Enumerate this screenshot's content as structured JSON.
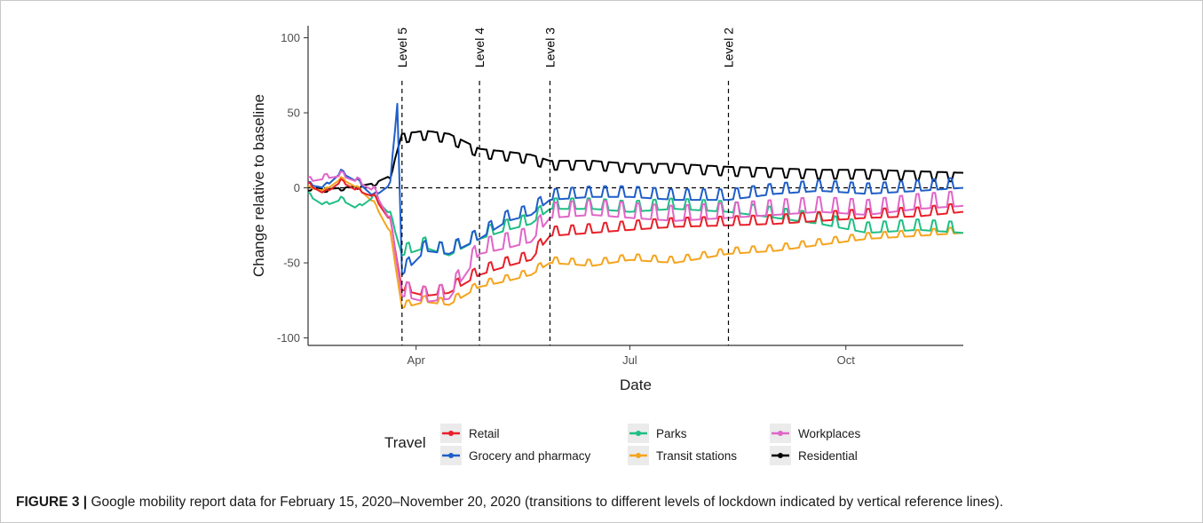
{
  "caption": {
    "label": "FIGURE 3 |",
    "text": " Google mobility report data for February 15, 2020–November 20, 2020 (transitions to different levels of lockdown indicated by vertical reference lines)."
  },
  "chart_data": {
    "type": "line",
    "xlabel": "Date",
    "ylabel": "Change relative to baseline",
    "xlim": [
      "2020-02-15",
      "2020-11-20"
    ],
    "ylim": [
      -105,
      108
    ],
    "x_ticks": [
      {
        "date": "2020-04-01",
        "label": "Apr"
      },
      {
        "date": "2020-07-01",
        "label": "Jul"
      },
      {
        "date": "2020-10-01",
        "label": "Oct"
      }
    ],
    "y_ticks": [
      -100,
      -50,
      0,
      50,
      100
    ],
    "grid": false,
    "reference_lines": [
      {
        "date": "2020-03-26",
        "label": "Level 5"
      },
      {
        "date": "2020-04-28",
        "label": "Level 4"
      },
      {
        "date": "2020-05-28",
        "label": "Level 3"
      },
      {
        "date": "2020-08-12",
        "label": "Level 2"
      }
    ],
    "horizontal_reference": 0,
    "legend": {
      "title": "Travel",
      "position": "bottom",
      "entries": [
        "Retail",
        "Grocery and pharmacy",
        "Parks",
        "Transit stations",
        "Workplaces",
        "Residential"
      ]
    },
    "series": [
      {
        "name": "Retail",
        "color": "#e8202a",
        "points": [
          [
            "2020-02-15",
            2
          ],
          [
            "2020-02-22",
            -4
          ],
          [
            "2020-02-29",
            4
          ],
          [
            "2020-03-07",
            -2
          ],
          [
            "2020-03-14",
            -6
          ],
          [
            "2020-03-21",
            -22
          ],
          [
            "2020-03-26",
            -68
          ],
          [
            "2020-04-05",
            -72
          ],
          [
            "2020-04-15",
            -70
          ],
          [
            "2020-04-28",
            -58
          ],
          [
            "2020-05-10",
            -52
          ],
          [
            "2020-05-20",
            -48
          ],
          [
            "2020-05-28",
            -32
          ],
          [
            "2020-06-15",
            -30
          ],
          [
            "2020-07-01",
            -28
          ],
          [
            "2020-07-20",
            -26
          ],
          [
            "2020-08-12",
            -25
          ],
          [
            "2020-09-01",
            -24
          ],
          [
            "2020-09-20",
            -22
          ],
          [
            "2020-10-10",
            -20
          ],
          [
            "2020-11-01",
            -19
          ],
          [
            "2020-11-20",
            -16
          ]
        ]
      },
      {
        "name": "Grocery and pharmacy",
        "color": "#1f5ec8",
        "points": [
          [
            "2020-02-15",
            2
          ],
          [
            "2020-02-22",
            0
          ],
          [
            "2020-02-29",
            10
          ],
          [
            "2020-03-07",
            4
          ],
          [
            "2020-03-14",
            -6
          ],
          [
            "2020-03-21",
            2
          ],
          [
            "2020-03-24",
            56
          ],
          [
            "2020-03-26",
            -58
          ],
          [
            "2020-04-05",
            -42
          ],
          [
            "2020-04-15",
            -44
          ],
          [
            "2020-04-28",
            -34
          ],
          [
            "2020-05-10",
            -22
          ],
          [
            "2020-05-20",
            -18
          ],
          [
            "2020-05-28",
            -8
          ],
          [
            "2020-06-15",
            -6
          ],
          [
            "2020-07-01",
            -6
          ],
          [
            "2020-07-20",
            -8
          ],
          [
            "2020-08-12",
            -8
          ],
          [
            "2020-09-01",
            -4
          ],
          [
            "2020-09-20",
            -2
          ],
          [
            "2020-10-10",
            -4
          ],
          [
            "2020-11-01",
            -2
          ],
          [
            "2020-11-20",
            0
          ]
        ]
      },
      {
        "name": "Parks",
        "color": "#1fbe84",
        "points": [
          [
            "2020-02-15",
            -5
          ],
          [
            "2020-02-22",
            -12
          ],
          [
            "2020-02-29",
            -8
          ],
          [
            "2020-03-07",
            -14
          ],
          [
            "2020-03-14",
            -6
          ],
          [
            "2020-03-21",
            -18
          ],
          [
            "2020-03-26",
            -45
          ],
          [
            "2020-04-05",
            -40
          ],
          [
            "2020-04-15",
            -45
          ],
          [
            "2020-04-28",
            -34
          ],
          [
            "2020-05-10",
            -28
          ],
          [
            "2020-05-20",
            -24
          ],
          [
            "2020-05-28",
            -14
          ],
          [
            "2020-06-15",
            -14
          ],
          [
            "2020-07-01",
            -16
          ],
          [
            "2020-07-20",
            -14
          ],
          [
            "2020-08-12",
            -16
          ],
          [
            "2020-09-01",
            -20
          ],
          [
            "2020-09-20",
            -24
          ],
          [
            "2020-10-10",
            -30
          ],
          [
            "2020-11-01",
            -28
          ],
          [
            "2020-11-20",
            -30
          ]
        ]
      },
      {
        "name": "Transit stations",
        "color": "#f5a41e",
        "points": [
          [
            "2020-02-15",
            0
          ],
          [
            "2020-02-22",
            -2
          ],
          [
            "2020-02-29",
            6
          ],
          [
            "2020-03-07",
            0
          ],
          [
            "2020-03-14",
            -10
          ],
          [
            "2020-03-21",
            -30
          ],
          [
            "2020-03-26",
            -80
          ],
          [
            "2020-04-05",
            -76
          ],
          [
            "2020-04-15",
            -78
          ],
          [
            "2020-04-28",
            -66
          ],
          [
            "2020-05-10",
            -62
          ],
          [
            "2020-05-20",
            -58
          ],
          [
            "2020-05-28",
            -50
          ],
          [
            "2020-06-15",
            -52
          ],
          [
            "2020-07-01",
            -48
          ],
          [
            "2020-07-20",
            -50
          ],
          [
            "2020-08-12",
            -44
          ],
          [
            "2020-09-01",
            -42
          ],
          [
            "2020-09-20",
            -38
          ],
          [
            "2020-10-10",
            -34
          ],
          [
            "2020-11-01",
            -32
          ],
          [
            "2020-11-20",
            -30
          ]
        ]
      },
      {
        "name": "Workplaces",
        "color": "#e066c8",
        "points": [
          [
            "2020-02-15",
            4
          ],
          [
            "2020-02-22",
            6
          ],
          [
            "2020-02-29",
            8
          ],
          [
            "2020-03-07",
            4
          ],
          [
            "2020-03-14",
            -2
          ],
          [
            "2020-03-21",
            -22
          ],
          [
            "2020-03-26",
            -72
          ],
          [
            "2020-04-05",
            -76
          ],
          [
            "2020-04-15",
            -74
          ],
          [
            "2020-04-28",
            -44
          ],
          [
            "2020-05-10",
            -40
          ],
          [
            "2020-05-20",
            -36
          ],
          [
            "2020-05-28",
            -20
          ],
          [
            "2020-06-15",
            -18
          ],
          [
            "2020-07-01",
            -20
          ],
          [
            "2020-07-20",
            -22
          ],
          [
            "2020-08-12",
            -20
          ],
          [
            "2020-09-01",
            -18
          ],
          [
            "2020-09-20",
            -16
          ],
          [
            "2020-10-10",
            -18
          ],
          [
            "2020-11-01",
            -14
          ],
          [
            "2020-11-20",
            -12
          ]
        ]
      },
      {
        "name": "Residential",
        "color": "#000000",
        "points": [
          [
            "2020-02-15",
            0
          ],
          [
            "2020-02-22",
            -1
          ],
          [
            "2020-02-29",
            0
          ],
          [
            "2020-03-07",
            1
          ],
          [
            "2020-03-14",
            3
          ],
          [
            "2020-03-21",
            8
          ],
          [
            "2020-03-26",
            36
          ],
          [
            "2020-04-05",
            38
          ],
          [
            "2020-04-15",
            36
          ],
          [
            "2020-04-28",
            26
          ],
          [
            "2020-05-10",
            24
          ],
          [
            "2020-05-20",
            22
          ],
          [
            "2020-05-28",
            18
          ],
          [
            "2020-06-15",
            18
          ],
          [
            "2020-07-01",
            16
          ],
          [
            "2020-07-20",
            16
          ],
          [
            "2020-08-12",
            14
          ],
          [
            "2020-09-01",
            13
          ],
          [
            "2020-09-20",
            12
          ],
          [
            "2020-10-10",
            12
          ],
          [
            "2020-11-01",
            11
          ],
          [
            "2020-11-20",
            10
          ]
        ]
      }
    ]
  }
}
